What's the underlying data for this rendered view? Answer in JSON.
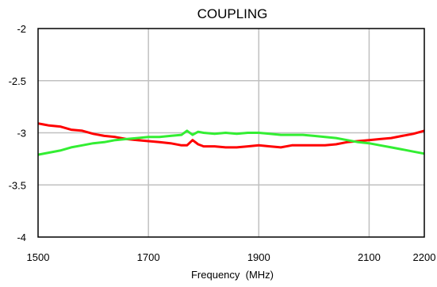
{
  "chart_data": {
    "type": "line",
    "title": "COUPLING",
    "xlabel": "Frequency  (MHz)",
    "ylabel": "",
    "xlim": [
      1500,
      2200
    ],
    "ylim": [
      -4,
      -2
    ],
    "xticks": [
      1500,
      1700,
      1900,
      2100,
      2200
    ],
    "xtick_labels": [
      "1500",
      "1700",
      "1900",
      "2100",
      "2200"
    ],
    "yticks": [
      -2,
      -2.5,
      -3,
      -3.5,
      -4
    ],
    "ytick_labels": [
      "-2",
      "-2.5",
      "-3",
      "-3.5",
      "-4"
    ],
    "grid": true,
    "series": [
      {
        "color": "#ff0000",
        "x": [
          1500,
          1510,
          1520,
          1540,
          1560,
          1580,
          1600,
          1620,
          1640,
          1660,
          1680,
          1700,
          1720,
          1740,
          1760,
          1770,
          1780,
          1790,
          1800,
          1820,
          1840,
          1860,
          1880,
          1900,
          1920,
          1940,
          1960,
          1980,
          2000,
          2020,
          2040,
          2060,
          2080,
          2100,
          2120,
          2140,
          2160,
          2180,
          2200
        ],
        "y": [
          -2.91,
          -2.92,
          -2.93,
          -2.94,
          -2.97,
          -2.98,
          -3.01,
          -3.03,
          -3.04,
          -3.06,
          -3.07,
          -3.08,
          -3.09,
          -3.1,
          -3.12,
          -3.12,
          -3.07,
          -3.11,
          -3.13,
          -3.13,
          -3.14,
          -3.14,
          -3.13,
          -3.12,
          -3.13,
          -3.14,
          -3.12,
          -3.12,
          -3.12,
          -3.12,
          -3.11,
          -3.09,
          -3.08,
          -3.07,
          -3.06,
          -3.05,
          -3.03,
          -3.01,
          -2.98
        ]
      },
      {
        "color": "#33ee33",
        "x": [
          1500,
          1520,
          1540,
          1560,
          1580,
          1600,
          1620,
          1640,
          1660,
          1680,
          1700,
          1720,
          1740,
          1760,
          1770,
          1780,
          1790,
          1800,
          1820,
          1840,
          1860,
          1880,
          1900,
          1920,
          1940,
          1960,
          1980,
          2000,
          2020,
          2040,
          2060,
          2080,
          2100,
          2120,
          2140,
          2160,
          2180,
          2200
        ],
        "y": [
          -3.21,
          -3.19,
          -3.17,
          -3.14,
          -3.12,
          -3.1,
          -3.09,
          -3.07,
          -3.06,
          -3.05,
          -3.04,
          -3.04,
          -3.03,
          -3.02,
          -2.98,
          -3.02,
          -2.99,
          -3.0,
          -3.01,
          -3.0,
          -3.01,
          -3.0,
          -3.0,
          -3.01,
          -3.02,
          -3.02,
          -3.02,
          -3.03,
          -3.04,
          -3.05,
          -3.07,
          -3.09,
          -3.1,
          -3.12,
          -3.14,
          -3.16,
          -3.18,
          -3.2
        ]
      }
    ]
  }
}
